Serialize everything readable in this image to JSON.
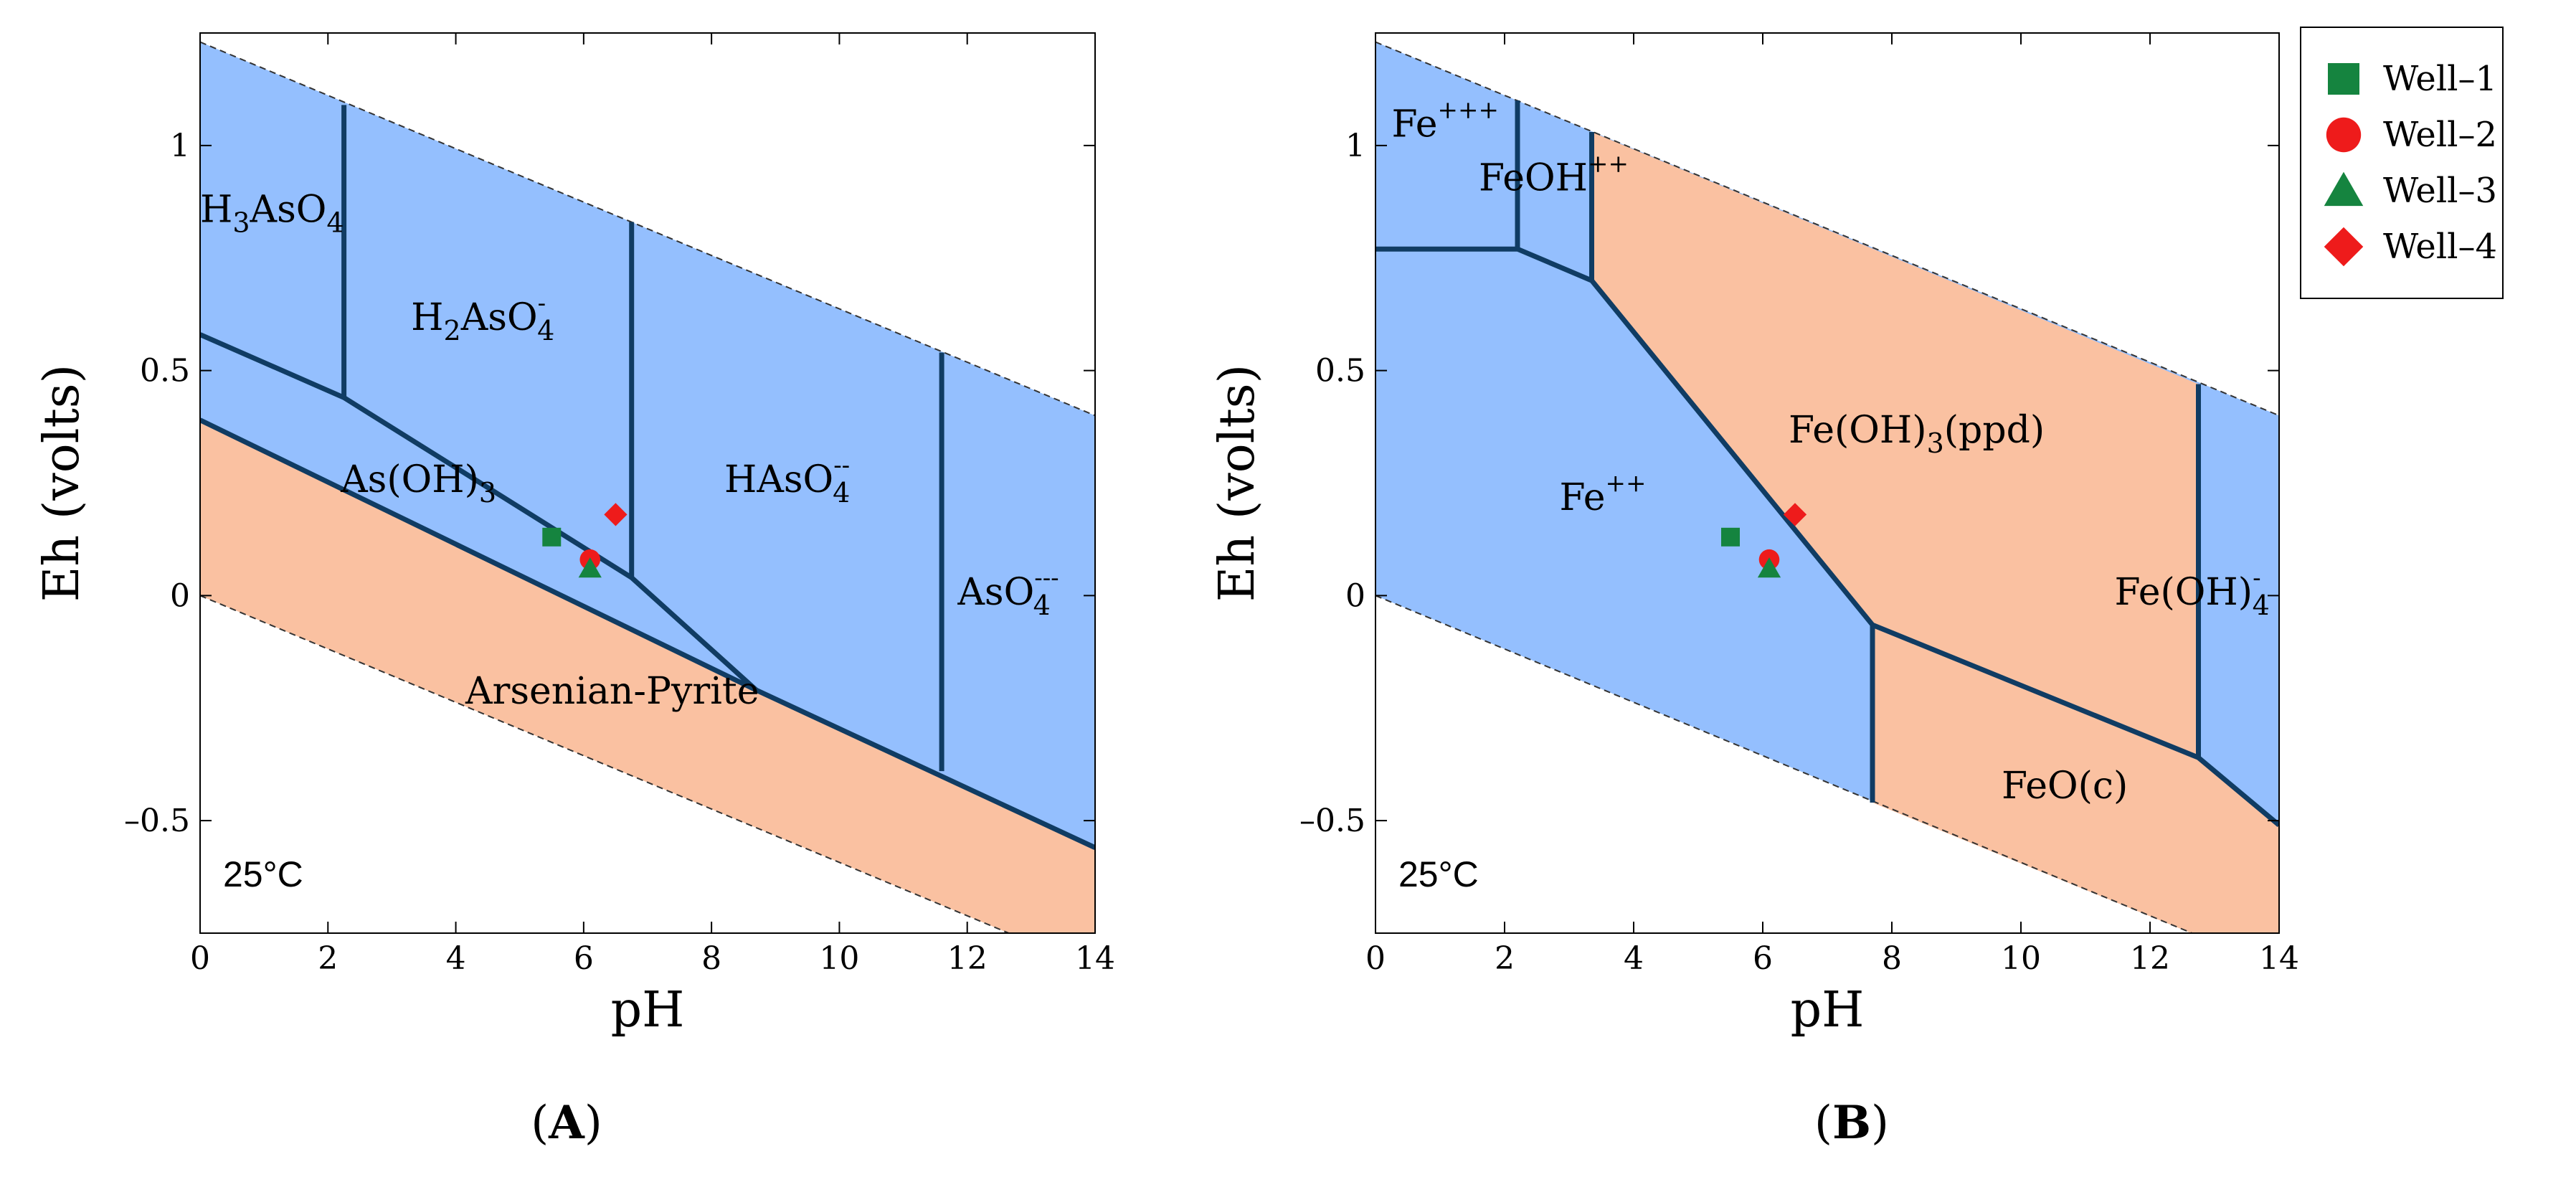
{
  "colors": {
    "blue_region": "#94BFFE",
    "salmon_region": "#FAC1A1",
    "boundary": "#103C63",
    "frame": "#000000",
    "well1": "#15843F",
    "well2": "#EE1B1B",
    "well3": "#15843F",
    "well4": "#EE1B1B"
  },
  "legend": {
    "items": [
      {
        "label": "Well–1",
        "marker": "square",
        "color": "#15843F"
      },
      {
        "label": "Well–2",
        "marker": "circle",
        "color": "#EE1B1B"
      },
      {
        "label": "Well–3",
        "marker": "triangle",
        "color": "#15843F"
      },
      {
        "label": "Well–4",
        "marker": "diamond",
        "color": "#EE1B1B"
      }
    ]
  },
  "chart_data": [
    {
      "type": "area",
      "panel_label": "A",
      "title": "",
      "xlabel": "pH",
      "ylabel": "Eh (volts)",
      "xlim": [
        0,
        14
      ],
      "ylim": [
        -0.75,
        1.25
      ],
      "xticks": [
        "0",
        "2",
        "4",
        "6",
        "8",
        "10",
        "12",
        "14"
      ],
      "yticks": [
        {
          "value": 1,
          "label": "1"
        },
        {
          "value": 0.5,
          "label": "0.5"
        },
        {
          "value": 0,
          "label": "0"
        },
        {
          "value": -0.5,
          "label": "–0.5"
        }
      ],
      "temperature": "25°C",
      "stability_limits": {
        "upper": [
          [
            0,
            1.23
          ],
          [
            14,
            0.4
          ]
        ],
        "lower": [
          [
            0,
            0.0
          ],
          [
            14,
            -0.83
          ]
        ]
      },
      "regions": [
        {
          "name": "Arsenian-Pyrite",
          "fill": "salmon",
          "polygon": [
            [
              0,
              0.39
            ],
            [
              8.7,
              -0.21
            ],
            [
              14,
              -0.56
            ],
            [
              14,
              -0.83
            ],
            [
              0,
              0.0
            ]
          ]
        },
        {
          "name": "aqueous",
          "fill": "blue",
          "polygon": [
            [
              0,
              1.23
            ],
            [
              14,
              0.4
            ],
            [
              14,
              -0.56
            ],
            [
              8.7,
              -0.21
            ],
            [
              0,
              0.39
            ]
          ]
        }
      ],
      "boundaries": [
        [
          [
            0,
            0.39
          ],
          [
            8.7,
            -0.21
          ],
          [
            14,
            -0.56
          ]
        ],
        [
          [
            0,
            0.58
          ],
          [
            2.25,
            0.44
          ],
          [
            6.75,
            0.04
          ],
          [
            8.7,
            -0.21
          ]
        ],
        [
          [
            2.25,
            1.09
          ],
          [
            2.25,
            0.44
          ]
        ],
        [
          [
            6.75,
            0.83
          ],
          [
            6.75,
            0.04
          ]
        ],
        [
          [
            11.6,
            0.54
          ],
          [
            11.6,
            -0.39
          ]
        ]
      ],
      "species_labels": [
        {
          "base": "H",
          "parts": [
            {
              "t": "H",
              "s": ""
            },
            {
              "t": "3",
              "s": "sub"
            },
            {
              "t": "AsO",
              "s": ""
            },
            {
              "t": "4",
              "s": "sub"
            }
          ],
          "at": [
            0,
            0.83
          ]
        },
        {
          "parts": [
            {
              "t": "H",
              "s": ""
            },
            {
              "t": "2",
              "s": "sub"
            },
            {
              "t": "AsO",
              "s": ""
            },
            {
              "t": "-",
              "s": "sup"
            },
            {
              "t": "4",
              "s": "sub"
            }
          ],
          "at": [
            3.3,
            0.59
          ]
        },
        {
          "parts": [
            {
              "t": "As(OH)",
              "s": ""
            },
            {
              "t": "3",
              "s": "sub"
            }
          ],
          "at": [
            2.2,
            0.23
          ]
        },
        {
          "parts": [
            {
              "t": "HAsO",
              "s": ""
            },
            {
              "t": "--",
              "s": "sup"
            },
            {
              "t": "4",
              "s": "sub"
            }
          ],
          "at": [
            8.2,
            0.23
          ]
        },
        {
          "parts": [
            {
              "t": "AsO",
              "s": ""
            },
            {
              "t": "---",
              "s": "sup"
            },
            {
              "t": "4",
              "s": "sub"
            }
          ],
          "at": [
            11.85,
            -0.02
          ]
        },
        {
          "parts": [
            {
              "t": "Arsenian-Pyrite",
              "s": ""
            }
          ],
          "at": [
            4.15,
            -0.24
          ]
        }
      ],
      "series": [
        {
          "name": "Well–1",
          "marker": "square",
          "x": 5.5,
          "y": 0.13
        },
        {
          "name": "Well–2",
          "marker": "circle",
          "x": 6.1,
          "y": 0.08
        },
        {
          "name": "Well–3",
          "marker": "triangle",
          "x": 6.1,
          "y": 0.06
        },
        {
          "name": "Well–4",
          "marker": "diamond",
          "x": 6.5,
          "y": 0.18
        }
      ]
    },
    {
      "type": "area",
      "panel_label": "B",
      "title": "",
      "xlabel": "pH",
      "ylabel": "Eh (volts)",
      "xlim": [
        0,
        14
      ],
      "ylim": [
        -0.75,
        1.25
      ],
      "xticks": [
        "0",
        "2",
        "4",
        "6",
        "8",
        "10",
        "12",
        "14"
      ],
      "yticks": [
        {
          "value": 1,
          "label": "1"
        },
        {
          "value": 0.5,
          "label": "0.5"
        },
        {
          "value": 0,
          "label": "0"
        },
        {
          "value": -0.5,
          "label": "–0.5"
        }
      ],
      "temperature": "25°C",
      "stability_limits": {
        "upper": [
          [
            0,
            1.23
          ],
          [
            14,
            0.4
          ]
        ],
        "lower": [
          [
            0,
            0.0
          ],
          [
            14,
            -0.83
          ]
        ]
      },
      "regions": [
        {
          "name": "aqueous",
          "fill": "blue",
          "polygon": [
            [
              0,
              1.23
            ],
            [
              14,
              0.4
            ],
            [
              14,
              -0.83
            ],
            [
              0,
              0.0
            ]
          ]
        },
        {
          "name": "Fe(OH)3(ppd)",
          "fill": "salmon",
          "polygon": [
            [
              3.35,
              1.03
            ],
            [
              12.75,
              0.47
            ],
            [
              12.75,
              -0.36
            ],
            [
              7.7,
              -0.065
            ],
            [
              3.35,
              0.7
            ]
          ]
        },
        {
          "name": "FeO(c)",
          "fill": "salmon",
          "polygon": [
            [
              7.7,
              -0.065
            ],
            [
              12.75,
              -0.36
            ],
            [
              14,
              -0.51
            ],
            [
              14,
              -0.83
            ],
            [
              7.7,
              -0.46
            ]
          ]
        }
      ],
      "boundaries": [
        [
          [
            0,
            0.77
          ],
          [
            2.2,
            0.77
          ],
          [
            3.35,
            0.7
          ],
          [
            7.7,
            -0.065
          ],
          [
            12.75,
            -0.36
          ],
          [
            14,
            -0.51
          ]
        ],
        [
          [
            2.2,
            1.1
          ],
          [
            2.2,
            0.77
          ]
        ],
        [
          [
            3.35,
            1.03
          ],
          [
            3.35,
            0.7
          ]
        ],
        [
          [
            7.7,
            -0.065
          ],
          [
            7.7,
            -0.46
          ]
        ],
        [
          [
            12.75,
            0.47
          ],
          [
            12.75,
            -0.36
          ]
        ]
      ],
      "species_labels": [
        {
          "parts": [
            {
              "t": "Fe",
              "s": ""
            },
            {
              "t": "+++",
              "s": "sup"
            }
          ],
          "at": [
            0.25,
            1.02
          ]
        },
        {
          "parts": [
            {
              "t": "FeOH",
              "s": ""
            },
            {
              "t": "++",
              "s": "sup"
            }
          ],
          "at": [
            1.6,
            0.9
          ]
        },
        {
          "parts": [
            {
              "t": "Fe(OH)",
              "s": ""
            },
            {
              "t": "3",
              "s": "sub"
            },
            {
              "t": "(ppd)",
              "s": ""
            }
          ],
          "at": [
            6.4,
            0.34
          ]
        },
        {
          "parts": [
            {
              "t": "Fe",
              "s": ""
            },
            {
              "t": "++",
              "s": "sup"
            }
          ],
          "at": [
            2.85,
            0.19
          ]
        },
        {
          "parts": [
            {
              "t": "Fe(OH)",
              "s": ""
            },
            {
              "t": "-",
              "s": "sup"
            },
            {
              "t": "4",
              "s": "sub"
            }
          ],
          "at": [
            11.45,
            -0.02
          ]
        },
        {
          "parts": [
            {
              "t": "FeO(c)",
              "s": ""
            }
          ],
          "at": [
            9.7,
            -0.45
          ]
        }
      ],
      "series": [
        {
          "name": "Well–1",
          "marker": "square",
          "x": 5.5,
          "y": 0.13
        },
        {
          "name": "Well–2",
          "marker": "circle",
          "x": 6.1,
          "y": 0.08
        },
        {
          "name": "Well–3",
          "marker": "triangle",
          "x": 6.1,
          "y": 0.06
        },
        {
          "name": "Well–4",
          "marker": "diamond",
          "x": 6.5,
          "y": 0.18
        }
      ]
    }
  ]
}
